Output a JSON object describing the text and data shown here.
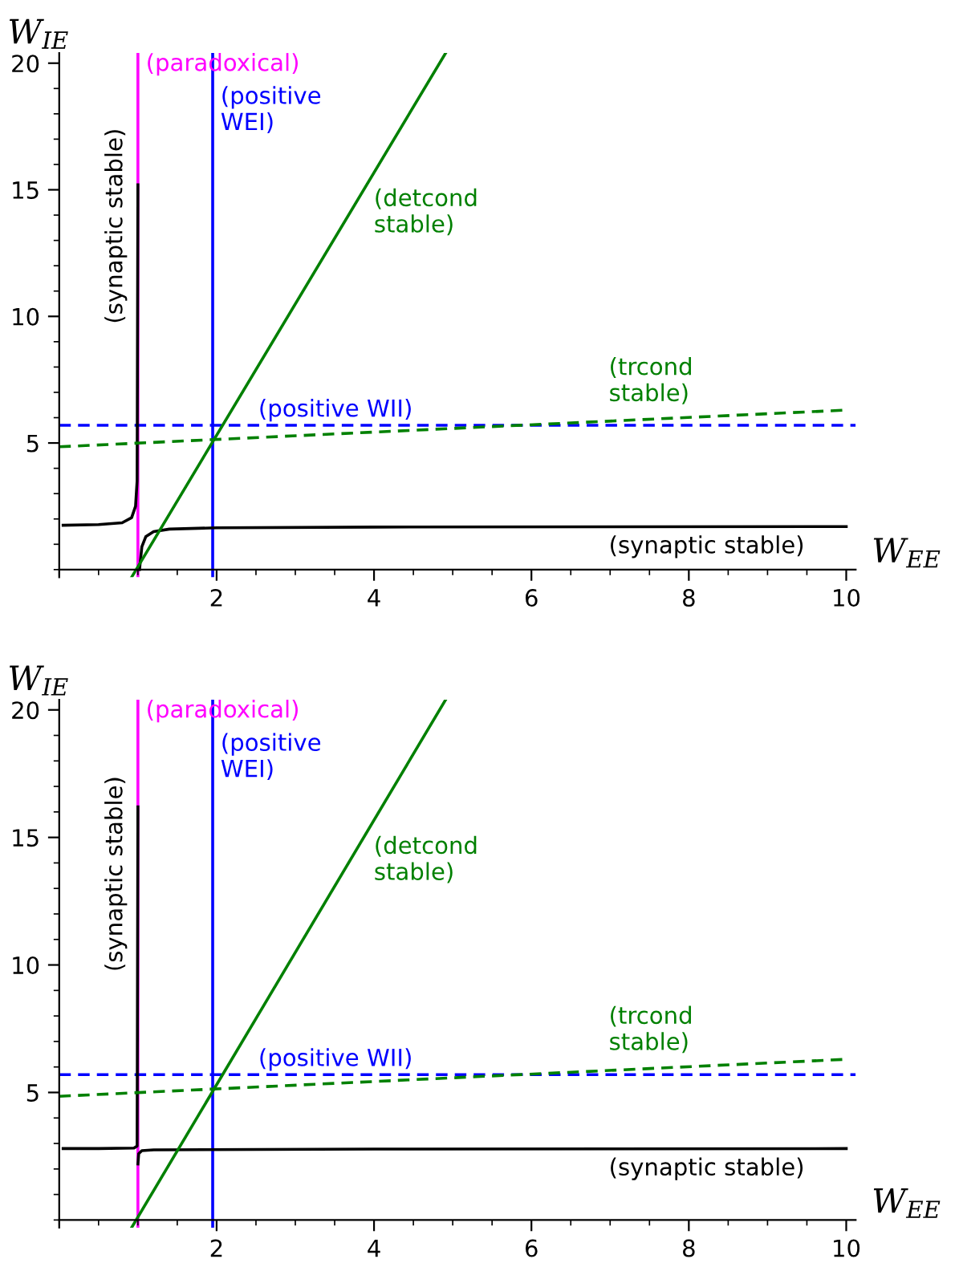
{
  "chart_data": [
    {
      "type": "line",
      "xlabel": "W$_{EE}$",
      "ylabel": "W$_{IE}$",
      "xlim": [
        0,
        10.12
      ],
      "ylim": [
        -0.3,
        20.4
      ],
      "xticks": [
        2,
        4,
        6,
        8,
        10
      ],
      "yticks": [
        5,
        10,
        15,
        20
      ],
      "ref_lines": [
        {
          "axis": "x",
          "value": 1,
          "label": "(paradoxical)",
          "color": "#ff00ff",
          "line_style": "solid"
        },
        {
          "axis": "x",
          "value": 1.95,
          "label": "(positive\nWEI)",
          "color": "#0000ff",
          "line_style": "solid"
        },
        {
          "axis": "y",
          "value": 5.7,
          "label": "(positive WII)",
          "color": "#0000ff",
          "line_style": "dashed"
        }
      ],
      "series": [
        {
          "name": "(synaptic stable)",
          "color": "#000000",
          "line_style": "solid",
          "x": [
            0.05,
            0.5,
            0.8,
            0.92,
            0.97,
            0.99,
            1.0,
            null,
            1.02,
            1.05,
            1.1,
            1.2,
            1.4,
            2,
            4,
            10
          ],
          "values": [
            1.75,
            1.78,
            1.85,
            2.05,
            2.5,
            3.5,
            15.2,
            null,
            0,
            0.9,
            1.3,
            1.5,
            1.6,
            1.65,
            1.68,
            1.7
          ]
        },
        {
          "name": "(detcond\nstable)",
          "color": "#008000",
          "line_style": "solid",
          "x": [
            0.92,
            4.91
          ],
          "values": [
            -0.3,
            20.4
          ]
        },
        {
          "name": "(trcond\nstable)",
          "color": "#008000",
          "line_style": "dashed",
          "x": [
            0,
            10
          ],
          "values": [
            4.85,
            6.3
          ]
        }
      ]
    },
    {
      "type": "line",
      "xlabel": "W$_{EE}$",
      "ylabel": "W$_{IE}$",
      "xlim": [
        0,
        10.12
      ],
      "ylim": [
        -0.3,
        20.4
      ],
      "xticks": [
        2,
        4,
        6,
        8,
        10
      ],
      "yticks": [
        5,
        10,
        15,
        20
      ],
      "ref_lines": [
        {
          "axis": "x",
          "value": 1,
          "label": "(paradoxical)",
          "color": "#ff00ff",
          "line_style": "solid"
        },
        {
          "axis": "x",
          "value": 1.95,
          "label": "(positive\nWEI)",
          "color": "#0000ff",
          "line_style": "solid"
        },
        {
          "axis": "y",
          "value": 5.7,
          "label": "(positive WII)",
          "color": "#0000ff",
          "line_style": "dashed"
        }
      ],
      "series": [
        {
          "name": "(synaptic stable)",
          "color": "#000000",
          "line_style": "solid",
          "x": [
            0.05,
            0.5,
            0.95,
            0.99,
            1.0,
            null,
            1.0,
            1.01,
            1.05,
            1.2,
            4,
            10
          ],
          "values": [
            2.8,
            2.8,
            2.82,
            2.9,
            16.2,
            null,
            2.2,
            2.6,
            2.72,
            2.75,
            2.78,
            2.8
          ]
        },
        {
          "name": "(detcond\nstable)",
          "color": "#008000",
          "line_style": "solid",
          "x": [
            0.92,
            4.91
          ],
          "values": [
            -0.3,
            20.4
          ]
        },
        {
          "name": "(trcond\nstable)",
          "color": "#008000",
          "line_style": "dashed",
          "x": [
            0,
            10
          ],
          "values": [
            4.85,
            6.3
          ]
        }
      ]
    }
  ]
}
